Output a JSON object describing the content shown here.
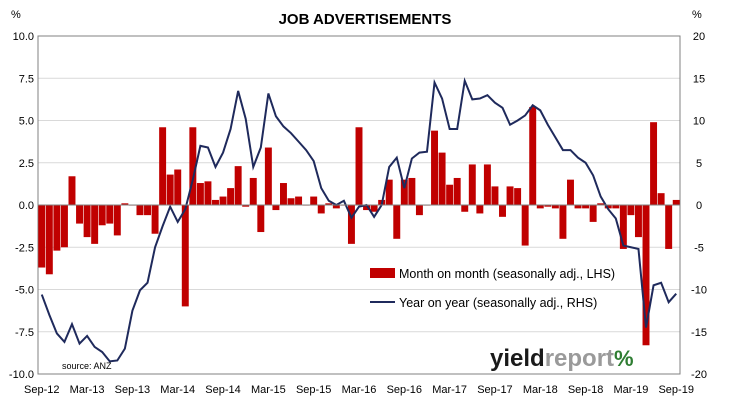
{
  "chart_data": {
    "type": "bar",
    "title": "JOB ADVERTISEMENTS",
    "left_axis_unit": "%",
    "right_axis_unit": "%",
    "source": "source: ANZ",
    "brand": {
      "part1": "yield",
      "part2": "report",
      "symbol": "%"
    },
    "x_tick_labels": [
      "Sep-12",
      "Mar-13",
      "Sep-13",
      "Mar-14",
      "Sep-14",
      "Mar-15",
      "Sep-15",
      "Mar-16",
      "Sep-16",
      "Mar-17",
      "Sep-17",
      "Mar-18",
      "Sep-18",
      "Mar-19",
      "Sep-19"
    ],
    "left_ticks": [
      "10.0",
      "7.5",
      "5.0",
      "2.5",
      "0.0",
      "-2.5",
      "-5.0",
      "-7.5",
      "-10.0"
    ],
    "right_ticks": [
      "20",
      "15",
      "10",
      "5",
      "0",
      "-5",
      "-10",
      "-15",
      "-20"
    ],
    "ylim_left": [
      -10,
      10
    ],
    "ylim_right": [
      -20,
      20
    ],
    "months": [
      "Sep-12",
      "Oct-12",
      "Nov-12",
      "Dec-12",
      "Jan-13",
      "Feb-13",
      "Mar-13",
      "Apr-13",
      "May-13",
      "Jun-13",
      "Jul-13",
      "Aug-13",
      "Sep-13",
      "Oct-13",
      "Nov-13",
      "Dec-13",
      "Jan-14",
      "Feb-14",
      "Mar-14",
      "Apr-14",
      "May-14",
      "Jun-14",
      "Jul-14",
      "Aug-14",
      "Sep-14",
      "Oct-14",
      "Nov-14",
      "Dec-14",
      "Jan-15",
      "Feb-15",
      "Mar-15",
      "Apr-15",
      "May-15",
      "Jun-15",
      "Jul-15",
      "Aug-15",
      "Sep-15",
      "Oct-15",
      "Nov-15",
      "Dec-15",
      "Jan-16",
      "Feb-16",
      "Mar-16",
      "Apr-16",
      "May-16",
      "Jun-16",
      "Jul-16",
      "Aug-16",
      "Sep-16",
      "Oct-16",
      "Nov-16",
      "Dec-16",
      "Jan-17",
      "Feb-17",
      "Mar-17",
      "Apr-17",
      "May-17",
      "Jun-17",
      "Jul-17",
      "Aug-17",
      "Sep-17",
      "Oct-17",
      "Nov-17",
      "Dec-17",
      "Jan-18",
      "Feb-18",
      "Mar-18",
      "Apr-18",
      "May-18",
      "Jun-18",
      "Jul-18",
      "Aug-18",
      "Sep-18",
      "Oct-18",
      "Nov-18",
      "Dec-18",
      "Jan-19",
      "Feb-19",
      "Mar-19",
      "Apr-19",
      "May-19",
      "Jun-19",
      "Jul-19",
      "Aug-19",
      "Sep-19"
    ],
    "series": [
      {
        "name": "Month on month (seasonally adj., LHS)",
        "type": "bar",
        "axis": "left",
        "color": "#c00000",
        "values": [
          -3.7,
          -4.1,
          -2.7,
          -2.5,
          1.7,
          -1.1,
          -1.9,
          -2.3,
          -1.2,
          -1.1,
          -1.8,
          0.1,
          0.0,
          -0.6,
          -0.6,
          -1.7,
          4.6,
          1.8,
          2.1,
          -6.0,
          4.6,
          1.3,
          1.4,
          0.3,
          0.5,
          1.0,
          2.3,
          -0.1,
          1.6,
          -1.6,
          3.4,
          -0.3,
          1.3,
          0.4,
          0.5,
          0.0,
          0.5,
          -0.5,
          0.1,
          -0.2,
          0.0,
          -2.3,
          4.6,
          -0.3,
          -0.4,
          0.3,
          1.5,
          -2.0,
          1.5,
          1.6,
          -0.6,
          0.0,
          4.4,
          3.1,
          1.2,
          1.6,
          -0.4,
          2.4,
          -0.5,
          2.4,
          1.1,
          -0.7,
          1.1,
          1.0,
          -2.4,
          5.8,
          -0.2,
          -0.1,
          -0.2,
          -2.0,
          1.5,
          -0.2,
          -0.2,
          -1.0,
          0.1,
          -0.2,
          -0.2,
          -2.6,
          -0.6,
          -1.9,
          -8.3,
          4.9,
          0.7,
          -2.6,
          0.3
        ]
      },
      {
        "name": "Year on year (seasonally adj., RHS)",
        "type": "line",
        "axis": "right",
        "color": "#1f2a5c",
        "values": [
          -10.6,
          -13.0,
          -15.2,
          -16.2,
          -14.1,
          -16.4,
          -15.5,
          -16.8,
          -17.4,
          -18.5,
          -18.4,
          -17.0,
          -12.5,
          -10.1,
          -9.2,
          -5.0,
          -2.5,
          -0.2,
          -2.0,
          -0.5,
          3.0,
          7.0,
          6.8,
          4.5,
          6.2,
          9.0,
          13.5,
          10.2,
          4.5,
          6.8,
          13.2,
          10.5,
          9.3,
          8.5,
          7.5,
          6.5,
          5.2,
          2.0,
          0.5,
          0.0,
          0.5,
          -1.5,
          -0.2,
          0.0,
          -1.4,
          0.0,
          4.5,
          5.6,
          2.0,
          5.5,
          6.2,
          6.3,
          14.5,
          12.6,
          9.0,
          9.0,
          14.7,
          12.5,
          12.6,
          13.0,
          12.1,
          11.5,
          9.5,
          10.0,
          10.6,
          11.8,
          11.2,
          9.5,
          8.0,
          6.5,
          6.5,
          5.6,
          5.0,
          3.5,
          1.0,
          -0.5,
          -1.6,
          -4.8,
          -5.0,
          -5.2,
          -14.5,
          -9.5,
          -9.2,
          -11.5,
          -10.5
        ]
      }
    ],
    "legend_position": "bottom-right",
    "grid": "horizontal"
  }
}
